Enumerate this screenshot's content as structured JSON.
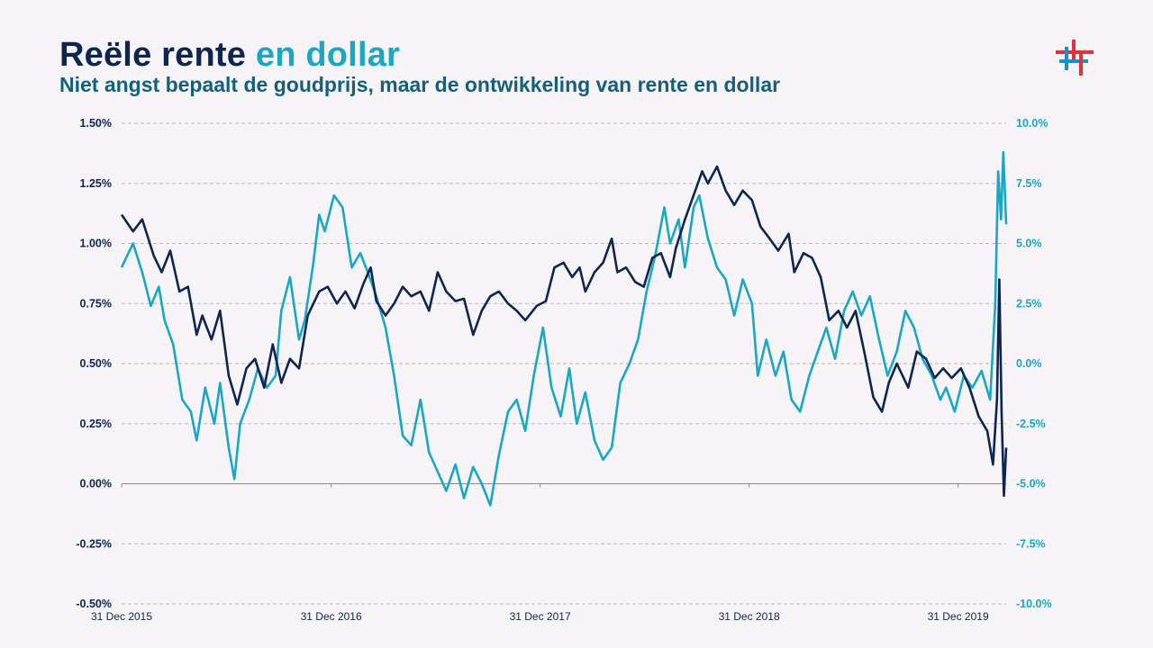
{
  "header": {
    "title_main": "Reële rente",
    "title_accent": "en dollar",
    "subtitle": "Niet angst bepaalt de goudprijs, maar de ontwikkeling van rente en dollar"
  },
  "colors": {
    "navy": "#0d2550",
    "cyan": "#1aa7c5",
    "grid": "#b9b9b9",
    "zero_line": "#d8a8a8",
    "logo_red": "#e0323c",
    "logo_blue": "#1f8fc9"
  },
  "logo": {
    "icon": "hashtag-cross-logo"
  },
  "chart_data": {
    "type": "line",
    "title": "",
    "xlabel": "",
    "ylabel": "",
    "legend": "none",
    "grid": "horizontal dashed",
    "y_left": {
      "ylim": [
        -0.5,
        1.5
      ],
      "ticks": [
        1.5,
        1.25,
        1.0,
        0.75,
        0.5,
        0.25,
        0.0,
        -0.25,
        -0.5
      ],
      "tick_labels": [
        "1.50%",
        "1.25%",
        "1.00%",
        "0.75%",
        "0.50%",
        "0.25%",
        "0.00%",
        "-0.25%",
        "-0.50%"
      ]
    },
    "y_right": {
      "ylim": [
        -10,
        10
      ],
      "ticks": [
        10,
        7.5,
        5,
        2.5,
        0,
        -2.5,
        -5,
        -7.5,
        -10
      ],
      "tick_labels": [
        "10.0%",
        "7.5%",
        "5.0%",
        "2.5%",
        "0.0%",
        "-2.5%",
        "-5.0%",
        "-7.5%",
        "-10.0%"
      ]
    },
    "x_ticks": [
      "31 Dec 2015",
      "31 Dec 2016",
      "31 Dec 2017",
      "31 Dec 2018",
      "31 Dec 2019"
    ],
    "series": [
      {
        "axis": "left",
        "color": "#0d2550",
        "points": [
          [
            "2015-12-31",
            1.12
          ],
          [
            "2016-01-20",
            1.05
          ],
          [
            "2016-02-05",
            1.1
          ],
          [
            "2016-02-25",
            0.95
          ],
          [
            "2016-03-10",
            0.88
          ],
          [
            "2016-03-25",
            0.97
          ],
          [
            "2016-04-10",
            0.8
          ],
          [
            "2016-04-25",
            0.82
          ],
          [
            "2016-05-10",
            0.62
          ],
          [
            "2016-05-20",
            0.7
          ],
          [
            "2016-06-05",
            0.6
          ],
          [
            "2016-06-20",
            0.72
          ],
          [
            "2016-07-05",
            0.45
          ],
          [
            "2016-07-20",
            0.33
          ],
          [
            "2016-08-05",
            0.48
          ],
          [
            "2016-08-20",
            0.52
          ],
          [
            "2016-09-05",
            0.4
          ],
          [
            "2016-09-20",
            0.58
          ],
          [
            "2016-10-05",
            0.42
          ],
          [
            "2016-10-20",
            0.52
          ],
          [
            "2016-11-05",
            0.48
          ],
          [
            "2016-11-20",
            0.7
          ],
          [
            "2016-12-10",
            0.8
          ],
          [
            "2016-12-25",
            0.82
          ],
          [
            "2017-01-10",
            0.75
          ],
          [
            "2017-01-25",
            0.8
          ],
          [
            "2017-02-10",
            0.73
          ],
          [
            "2017-02-25",
            0.83
          ],
          [
            "2017-03-10",
            0.9
          ],
          [
            "2017-03-20",
            0.76
          ],
          [
            "2017-04-05",
            0.7
          ],
          [
            "2017-04-20",
            0.75
          ],
          [
            "2017-05-05",
            0.82
          ],
          [
            "2017-05-20",
            0.78
          ],
          [
            "2017-06-05",
            0.8
          ],
          [
            "2017-06-20",
            0.72
          ],
          [
            "2017-07-05",
            0.88
          ],
          [
            "2017-07-20",
            0.8
          ],
          [
            "2017-08-05",
            0.76
          ],
          [
            "2017-08-20",
            0.77
          ],
          [
            "2017-09-05",
            0.62
          ],
          [
            "2017-09-20",
            0.72
          ],
          [
            "2017-10-05",
            0.78
          ],
          [
            "2017-10-20",
            0.8
          ],
          [
            "2017-11-05",
            0.75
          ],
          [
            "2017-11-20",
            0.72
          ],
          [
            "2017-12-05",
            0.68
          ],
          [
            "2017-12-25",
            0.74
          ],
          [
            "2018-01-10",
            0.76
          ],
          [
            "2018-01-25",
            0.9
          ],
          [
            "2018-02-10",
            0.92
          ],
          [
            "2018-02-25",
            0.86
          ],
          [
            "2018-03-10",
            0.9
          ],
          [
            "2018-03-20",
            0.8
          ],
          [
            "2018-04-05",
            0.88
          ],
          [
            "2018-04-20",
            0.92
          ],
          [
            "2018-05-05",
            1.02
          ],
          [
            "2018-05-15",
            0.88
          ],
          [
            "2018-05-30",
            0.9
          ],
          [
            "2018-06-15",
            0.84
          ],
          [
            "2018-06-30",
            0.82
          ],
          [
            "2018-07-15",
            0.94
          ],
          [
            "2018-07-30",
            0.96
          ],
          [
            "2018-08-15",
            0.86
          ],
          [
            "2018-08-25",
            0.98
          ],
          [
            "2018-09-10",
            1.1
          ],
          [
            "2018-09-25",
            1.2
          ],
          [
            "2018-10-10",
            1.3
          ],
          [
            "2018-10-20",
            1.25
          ],
          [
            "2018-11-05",
            1.32
          ],
          [
            "2018-11-20",
            1.22
          ],
          [
            "2018-12-05",
            1.16
          ],
          [
            "2018-12-20",
            1.22
          ],
          [
            "2019-01-05",
            1.18
          ],
          [
            "2019-01-20",
            1.07
          ],
          [
            "2019-02-05",
            1.02
          ],
          [
            "2019-02-20",
            0.97
          ],
          [
            "2019-03-10",
            1.04
          ],
          [
            "2019-03-20",
            0.88
          ],
          [
            "2019-04-05",
            0.96
          ],
          [
            "2019-04-20",
            0.94
          ],
          [
            "2019-05-05",
            0.86
          ],
          [
            "2019-05-20",
            0.68
          ],
          [
            "2019-06-05",
            0.72
          ],
          [
            "2019-06-20",
            0.65
          ],
          [
            "2019-07-05",
            0.72
          ],
          [
            "2019-07-20",
            0.55
          ],
          [
            "2019-08-05",
            0.36
          ],
          [
            "2019-08-20",
            0.3
          ],
          [
            "2019-09-01",
            0.42
          ],
          [
            "2019-09-15",
            0.5
          ],
          [
            "2019-10-05",
            0.4
          ],
          [
            "2019-10-20",
            0.55
          ],
          [
            "2019-11-05",
            0.52
          ],
          [
            "2019-11-20",
            0.44
          ],
          [
            "2019-12-05",
            0.48
          ],
          [
            "2019-12-20",
            0.44
          ],
          [
            "2020-01-05",
            0.48
          ],
          [
            "2020-01-20",
            0.4
          ],
          [
            "2020-02-05",
            0.28
          ],
          [
            "2020-02-20",
            0.22
          ],
          [
            "2020-03-01",
            0.08
          ],
          [
            "2020-03-08",
            0.35
          ],
          [
            "2020-03-12",
            0.85
          ],
          [
            "2020-03-16",
            0.3
          ],
          [
            "2020-03-20",
            -0.05
          ],
          [
            "2020-03-24",
            0.15
          ]
        ]
      },
      {
        "axis": "right",
        "color": "#1aa7c5",
        "points": [
          [
            "2015-12-31",
            4.0
          ],
          [
            "2016-01-20",
            5.0
          ],
          [
            "2016-02-05",
            3.8
          ],
          [
            "2016-02-20",
            2.4
          ],
          [
            "2016-03-05",
            3.2
          ],
          [
            "2016-03-15",
            1.8
          ],
          [
            "2016-03-30",
            0.8
          ],
          [
            "2016-04-15",
            -1.5
          ],
          [
            "2016-04-30",
            -2.0
          ],
          [
            "2016-05-10",
            -3.2
          ],
          [
            "2016-05-25",
            -1.0
          ],
          [
            "2016-06-10",
            -2.5
          ],
          [
            "2016-06-20",
            -0.8
          ],
          [
            "2016-07-05",
            -3.5
          ],
          [
            "2016-07-15",
            -4.8
          ],
          [
            "2016-07-25",
            -2.5
          ],
          [
            "2016-08-10",
            -1.5
          ],
          [
            "2016-08-25",
            -0.2
          ],
          [
            "2016-09-10",
            -1.0
          ],
          [
            "2016-09-25",
            -0.5
          ],
          [
            "2016-10-05",
            2.2
          ],
          [
            "2016-10-20",
            3.6
          ],
          [
            "2016-11-05",
            1.0
          ],
          [
            "2016-11-15",
            1.8
          ],
          [
            "2016-11-30",
            4.2
          ],
          [
            "2016-12-10",
            6.2
          ],
          [
            "2016-12-20",
            5.5
          ],
          [
            "2017-01-05",
            7.0
          ],
          [
            "2017-01-20",
            6.5
          ],
          [
            "2017-02-05",
            4.0
          ],
          [
            "2017-02-20",
            4.6
          ],
          [
            "2017-03-05",
            3.8
          ],
          [
            "2017-03-20",
            2.8
          ],
          [
            "2017-04-05",
            1.5
          ],
          [
            "2017-04-20",
            -0.5
          ],
          [
            "2017-05-05",
            -3.0
          ],
          [
            "2017-05-20",
            -3.4
          ],
          [
            "2017-06-05",
            -1.5
          ],
          [
            "2017-06-20",
            -3.7
          ],
          [
            "2017-07-05",
            -4.5
          ],
          [
            "2017-07-20",
            -5.3
          ],
          [
            "2017-08-05",
            -4.2
          ],
          [
            "2017-08-20",
            -5.6
          ],
          [
            "2017-09-05",
            -4.3
          ],
          [
            "2017-09-20",
            -5.0
          ],
          [
            "2017-10-05",
            -5.9
          ],
          [
            "2017-10-20",
            -3.8
          ],
          [
            "2017-11-05",
            -2.0
          ],
          [
            "2017-11-20",
            -1.5
          ],
          [
            "2017-12-05",
            -2.8
          ],
          [
            "2017-12-20",
            -0.5
          ],
          [
            "2018-01-05",
            1.5
          ],
          [
            "2018-01-20",
            -1.0
          ],
          [
            "2018-02-05",
            -2.2
          ],
          [
            "2018-02-20",
            -0.2
          ],
          [
            "2018-03-05",
            -2.5
          ],
          [
            "2018-03-20",
            -1.2
          ],
          [
            "2018-04-05",
            -3.2
          ],
          [
            "2018-04-20",
            -4.0
          ],
          [
            "2018-05-05",
            -3.5
          ],
          [
            "2018-05-20",
            -0.8
          ],
          [
            "2018-06-05",
            0.0
          ],
          [
            "2018-06-20",
            1.0
          ],
          [
            "2018-07-05",
            3.0
          ],
          [
            "2018-07-20",
            4.5
          ],
          [
            "2018-08-05",
            6.5
          ],
          [
            "2018-08-15",
            5.0
          ],
          [
            "2018-08-30",
            6.0
          ],
          [
            "2018-09-10",
            4.0
          ],
          [
            "2018-09-25",
            6.5
          ],
          [
            "2018-10-05",
            7.0
          ],
          [
            "2018-10-20",
            5.2
          ],
          [
            "2018-11-05",
            4.0
          ],
          [
            "2018-11-20",
            3.5
          ],
          [
            "2018-12-05",
            2.0
          ],
          [
            "2018-12-20",
            3.5
          ],
          [
            "2019-01-05",
            2.5
          ],
          [
            "2019-01-15",
            -0.5
          ],
          [
            "2019-01-30",
            1.0
          ],
          [
            "2019-02-15",
            -0.5
          ],
          [
            "2019-03-01",
            0.5
          ],
          [
            "2019-03-15",
            -1.5
          ],
          [
            "2019-03-30",
            -2.0
          ],
          [
            "2019-04-15",
            -0.5
          ],
          [
            "2019-04-30",
            0.5
          ],
          [
            "2019-05-15",
            1.5
          ],
          [
            "2019-05-30",
            0.2
          ],
          [
            "2019-06-15",
            2.2
          ],
          [
            "2019-06-30",
            3.0
          ],
          [
            "2019-07-15",
            2.0
          ],
          [
            "2019-07-30",
            2.8
          ],
          [
            "2019-08-15",
            1.0
          ],
          [
            "2019-08-30",
            -0.5
          ],
          [
            "2019-09-15",
            0.5
          ],
          [
            "2019-09-30",
            2.2
          ],
          [
            "2019-10-15",
            1.5
          ],
          [
            "2019-10-30",
            0.2
          ],
          [
            "2019-11-15",
            -0.5
          ],
          [
            "2019-11-30",
            -1.5
          ],
          [
            "2019-12-10",
            -1.0
          ],
          [
            "2019-12-25",
            -2.0
          ],
          [
            "2020-01-10",
            -0.5
          ],
          [
            "2020-01-25",
            -1.0
          ],
          [
            "2020-02-10",
            -0.3
          ],
          [
            "2020-02-25",
            -1.5
          ],
          [
            "2020-03-05",
            2.5
          ],
          [
            "2020-03-10",
            8.0
          ],
          [
            "2020-03-15",
            6.0
          ],
          [
            "2020-03-19",
            8.8
          ],
          [
            "2020-03-24",
            5.8
          ]
        ]
      }
    ]
  }
}
